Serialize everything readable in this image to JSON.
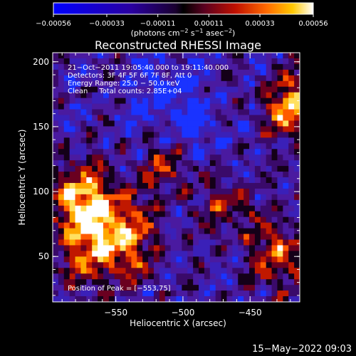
{
  "chart_data": {
    "type": "heatmap",
    "title": "Reconstructed RHESSI Image",
    "xlabel": "Heliocentric X (arcsec)",
    "ylabel": "Heliocentric Y (arcsec)",
    "xlim": [
      -597,
      -413
    ],
    "ylim": [
      15,
      207
    ],
    "x_ticks": [
      {
        "value": -550,
        "label": "−550"
      },
      {
        "value": -500,
        "label": "−500"
      },
      {
        "value": -450,
        "label": "−450"
      }
    ],
    "y_ticks": [
      {
        "value": 50,
        "label": "50"
      },
      {
        "value": 100,
        "label": "100"
      },
      {
        "value": 150,
        "label": "150"
      },
      {
        "value": 200,
        "label": "200"
      }
    ],
    "colorbar": {
      "range": [
        -0.00056,
        0.00056
      ],
      "ticks": [
        {
          "value": -0.00056,
          "label": "−0.00056"
        },
        {
          "value": -0.00033,
          "label": "−0.00033"
        },
        {
          "value": -0.00011,
          "label": "−0.00011"
        },
        {
          "value": 0.00011,
          "label": "0.00011"
        },
        {
          "value": 0.00033,
          "label": "0.00033"
        },
        {
          "value": 0.00056,
          "label": "0.00056"
        }
      ],
      "units": {
        "pre": "(photons cm",
        "e1": "−2",
        "mid1": " s",
        "e2": "−1",
        "mid2": " asec",
        "e3": "−2",
        "post": ")"
      },
      "colors": [
        "#0000ff",
        "#2e0070",
        "#3b0082",
        "#7a1fa0",
        "#b02040",
        "#e03000",
        "#ff7a00",
        "#ffc000",
        "#ffffff"
      ]
    },
    "annotations": [
      "21−Oct−2011 19:05:40.000 to 19:11:40.000",
      "Detectors: 3F 4F 5F 6F 7F 8F, Att 0",
      "Energy Range: 25.0 − 50.0 keV",
      "Clean     Total counts: 2.85E+04"
    ],
    "peak_label": "Position of Peak = [−553,75]",
    "peak_position": [
      -553,
      75
    ]
  },
  "footer": {
    "timestamp": "15−May−2022 09:03"
  }
}
